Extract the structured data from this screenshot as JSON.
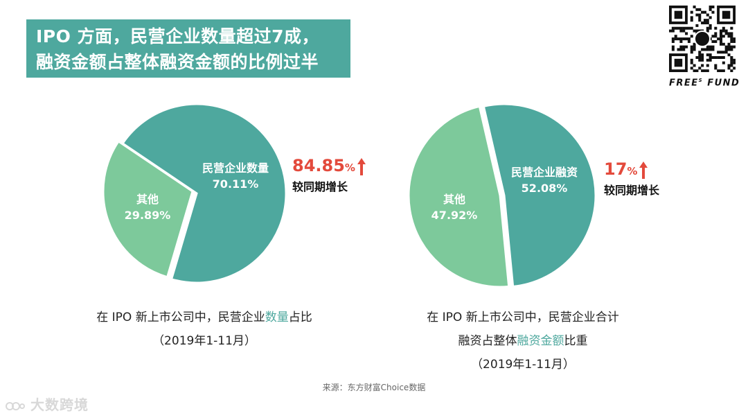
{
  "title": {
    "line1": "IPO 方面，民营企业数量超过7成，",
    "line2": "融资金额占整体融资金额的比例过半"
  },
  "brand": {
    "name": "FREE",
    "sup": "S",
    "name2": "FUND"
  },
  "colors": {
    "dark_teal": "#4ea89e",
    "light_green": "#7dc99b",
    "accent_red": "#e34a3c"
  },
  "chart_data": [
    {
      "type": "pie",
      "title": "在 IPO 新上市公司中，民营企业数量占比",
      "period": "（2019年1-11月）",
      "slices": [
        {
          "label": "民营企业数量",
          "value": 70.11,
          "display": "70.11%",
          "color": "#4ea89e"
        },
        {
          "label": "其他",
          "value": 29.89,
          "display": "29.89%",
          "color": "#7dc99b"
        }
      ],
      "growth": {
        "value": "84.85",
        "unit": "%",
        "label": "较同期增长",
        "direction": "up"
      }
    },
    {
      "type": "pie",
      "title": "在 IPO 新上市公司中，民营企业合计融资占整体融资金额比重",
      "period": "（2019年1-11月）",
      "slices": [
        {
          "label": "民营企业融资",
          "value": 52.08,
          "display": "52.08%",
          "color": "#4ea89e"
        },
        {
          "label": "其他",
          "value": 47.92,
          "display": "47.92%",
          "color": "#7dc99b"
        }
      ],
      "growth": {
        "value": "17",
        "unit": "%",
        "label": "较同期增长",
        "direction": "up"
      }
    }
  ],
  "captions": {
    "left": {
      "pre": "在 IPO 新上市公司中，民营企业",
      "highlight": "数量",
      "post": "占比",
      "period": "（2019年1-11月）"
    },
    "right": {
      "line1": "在 IPO 新上市公司中，民营企业合计",
      "pre": "融资占整体",
      "highlight": "融资金额",
      "post": "比重",
      "period": "（2019年1-11月）"
    }
  },
  "source": "来源：东方财富Choice数据",
  "watermark": "大数跨境"
}
